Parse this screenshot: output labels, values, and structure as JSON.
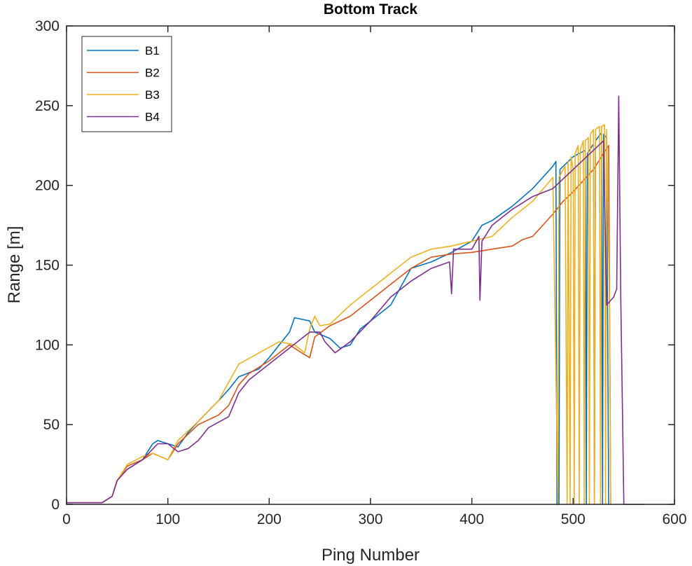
{
  "chart_data": {
    "type": "line",
    "title": "Bottom Track",
    "xlabel": "Ping Number",
    "ylabel": "Range [m]",
    "xlim": [
      0,
      600
    ],
    "ylim": [
      0,
      300
    ],
    "xticks": [
      0,
      100,
      200,
      300,
      400,
      500,
      600
    ],
    "yticks": [
      0,
      50,
      100,
      150,
      200,
      250,
      300
    ],
    "grid": false,
    "legend_position": "top-left",
    "series": [
      {
        "name": "B1",
        "color": "#0072BD",
        "points": [
          [
            0,
            1
          ],
          [
            35,
            1
          ],
          [
            45,
            5
          ],
          [
            50,
            15
          ],
          [
            60,
            22
          ],
          [
            75,
            28
          ],
          [
            85,
            38
          ],
          [
            90,
            40
          ],
          [
            100,
            38
          ],
          [
            110,
            36
          ],
          [
            120,
            45
          ],
          [
            130,
            52
          ],
          [
            150,
            65
          ],
          [
            160,
            72
          ],
          [
            170,
            80
          ],
          [
            190,
            85
          ],
          [
            200,
            92
          ],
          [
            210,
            100
          ],
          [
            220,
            108
          ],
          [
            225,
            117
          ],
          [
            240,
            115
          ],
          [
            245,
            108
          ],
          [
            260,
            104
          ],
          [
            270,
            98
          ],
          [
            280,
            100
          ],
          [
            290,
            110
          ],
          [
            300,
            115
          ],
          [
            320,
            125
          ],
          [
            340,
            148
          ],
          [
            360,
            152
          ],
          [
            380,
            158
          ],
          [
            400,
            165
          ],
          [
            410,
            175
          ],
          [
            420,
            178
          ],
          [
            440,
            187
          ],
          [
            460,
            198
          ],
          [
            480,
            212
          ],
          [
            483,
            215
          ],
          [
            484,
            0
          ],
          [
            486,
            0
          ],
          [
            487,
            210
          ],
          [
            500,
            218
          ],
          [
            512,
            222
          ],
          [
            513,
            0
          ],
          [
            514,
            220
          ],
          [
            520,
            226
          ],
          [
            521,
            0
          ],
          [
            522,
            228
          ],
          [
            528,
            233
          ],
          [
            529,
            0
          ],
          [
            530,
            232
          ],
          [
            533,
            230
          ],
          [
            535,
            0
          ]
        ]
      },
      {
        "name": "B2",
        "color": "#D95319",
        "points": [
          [
            0,
            1
          ],
          [
            35,
            1
          ],
          [
            45,
            5
          ],
          [
            50,
            15
          ],
          [
            60,
            24
          ],
          [
            75,
            28
          ],
          [
            85,
            32
          ],
          [
            100,
            28
          ],
          [
            110,
            38
          ],
          [
            130,
            50
          ],
          [
            150,
            56
          ],
          [
            160,
            62
          ],
          [
            170,
            75
          ],
          [
            180,
            82
          ],
          [
            200,
            90
          ],
          [
            220,
            100
          ],
          [
            232,
            95
          ],
          [
            240,
            92
          ],
          [
            245,
            105
          ],
          [
            260,
            112
          ],
          [
            280,
            118
          ],
          [
            300,
            128
          ],
          [
            320,
            138
          ],
          [
            340,
            148
          ],
          [
            360,
            155
          ],
          [
            380,
            157
          ],
          [
            400,
            158
          ],
          [
            420,
            160
          ],
          [
            440,
            162
          ],
          [
            450,
            166
          ],
          [
            460,
            168
          ],
          [
            470,
            175
          ],
          [
            480,
            182
          ],
          [
            490,
            190
          ],
          [
            500,
            196
          ],
          [
            520,
            210
          ],
          [
            530,
            220
          ],
          [
            535,
            225
          ],
          [
            537,
            0
          ]
        ]
      },
      {
        "name": "B3",
        "color": "#EDB120",
        "points": [
          [
            0,
            1
          ],
          [
            35,
            1
          ],
          [
            45,
            5
          ],
          [
            50,
            15
          ],
          [
            60,
            25
          ],
          [
            75,
            30
          ],
          [
            85,
            32
          ],
          [
            100,
            28
          ],
          [
            110,
            40
          ],
          [
            130,
            52
          ],
          [
            150,
            65
          ],
          [
            170,
            88
          ],
          [
            190,
            95
          ],
          [
            210,
            102
          ],
          [
            225,
            100
          ],
          [
            235,
            95
          ],
          [
            240,
            110
          ],
          [
            245,
            118
          ],
          [
            250,
            112
          ],
          [
            260,
            113
          ],
          [
            280,
            125
          ],
          [
            300,
            135
          ],
          [
            320,
            145
          ],
          [
            340,
            155
          ],
          [
            360,
            160
          ],
          [
            380,
            162
          ],
          [
            400,
            165
          ],
          [
            420,
            168
          ],
          [
            440,
            180
          ],
          [
            460,
            190
          ],
          [
            480,
            205
          ],
          [
            485,
            0
          ],
          [
            486,
            205
          ],
          [
            492,
            212
          ],
          [
            494,
            0
          ],
          [
            495,
            215
          ],
          [
            497,
            0
          ],
          [
            498,
            218
          ],
          [
            500,
            210
          ],
          [
            501,
            0
          ],
          [
            502,
            220
          ],
          [
            505,
            225
          ],
          [
            506,
            0
          ],
          [
            507,
            222
          ],
          [
            510,
            228
          ],
          [
            511,
            0
          ],
          [
            512,
            228
          ],
          [
            515,
            230
          ],
          [
            516,
            0
          ],
          [
            517,
            232
          ],
          [
            520,
            235
          ],
          [
            521,
            0
          ],
          [
            522,
            235
          ],
          [
            526,
            237
          ],
          [
            527,
            0
          ],
          [
            528,
            237
          ],
          [
            531,
            238
          ],
          [
            532,
            0
          ],
          [
            533,
            235
          ],
          [
            536,
            120
          ],
          [
            537,
            0
          ]
        ]
      },
      {
        "name": "B4",
        "color": "#7E2F8E",
        "points": [
          [
            0,
            1
          ],
          [
            35,
            1
          ],
          [
            45,
            5
          ],
          [
            50,
            15
          ],
          [
            60,
            22
          ],
          [
            75,
            28
          ],
          [
            90,
            38
          ],
          [
            100,
            38
          ],
          [
            110,
            33
          ],
          [
            120,
            35
          ],
          [
            130,
            40
          ],
          [
            140,
            48
          ],
          [
            160,
            55
          ],
          [
            170,
            70
          ],
          [
            180,
            78
          ],
          [
            200,
            88
          ],
          [
            220,
            98
          ],
          [
            240,
            108
          ],
          [
            250,
            108
          ],
          [
            255,
            102
          ],
          [
            265,
            95
          ],
          [
            280,
            102
          ],
          [
            300,
            115
          ],
          [
            320,
            130
          ],
          [
            340,
            140
          ],
          [
            360,
            148
          ],
          [
            378,
            152
          ],
          [
            380,
            132
          ],
          [
            382,
            160
          ],
          [
            400,
            160
          ],
          [
            407,
            168
          ],
          [
            408,
            128
          ],
          [
            410,
            165
          ],
          [
            420,
            175
          ],
          [
            440,
            185
          ],
          [
            460,
            193
          ],
          [
            480,
            198
          ],
          [
            500,
            210
          ],
          [
            520,
            222
          ],
          [
            530,
            228
          ],
          [
            533,
            125
          ],
          [
            540,
            130
          ],
          [
            543,
            135
          ],
          [
            545,
            256
          ],
          [
            547,
            130
          ],
          [
            550,
            0
          ],
          [
            570,
            0
          ]
        ]
      }
    ]
  }
}
